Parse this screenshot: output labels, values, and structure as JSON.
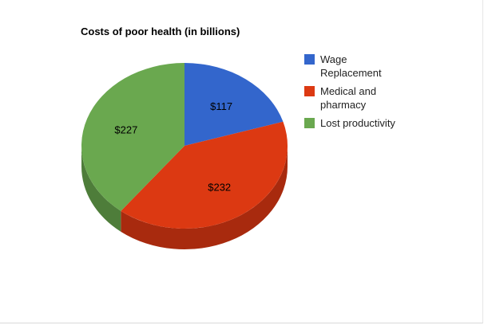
{
  "chart_data": {
    "type": "pie",
    "title": "Costs of poor health (in billions)",
    "three_d": true,
    "legend_position": "right",
    "start_angle_deg": 0,
    "slices": [
      {
        "category": "Wage Replacement",
        "legend_lines": [
          "Wage",
          "Replacement"
        ],
        "value": 117,
        "label": "$117",
        "color": "#3366cc",
        "side_color": "#2a55a8"
      },
      {
        "category": "Medical and pharmacy",
        "legend_lines": [
          "Medical and",
          "pharmacy"
        ],
        "value": 232,
        "label": "$232",
        "color": "#dc3912",
        "side_color": "#a82a0e"
      },
      {
        "category": "Lost productivity",
        "legend_lines": [
          "Lost productivity"
        ],
        "value": 227,
        "label": "$227",
        "color": "#6aa84f",
        "side_color": "#4e7d3a"
      }
    ]
  }
}
